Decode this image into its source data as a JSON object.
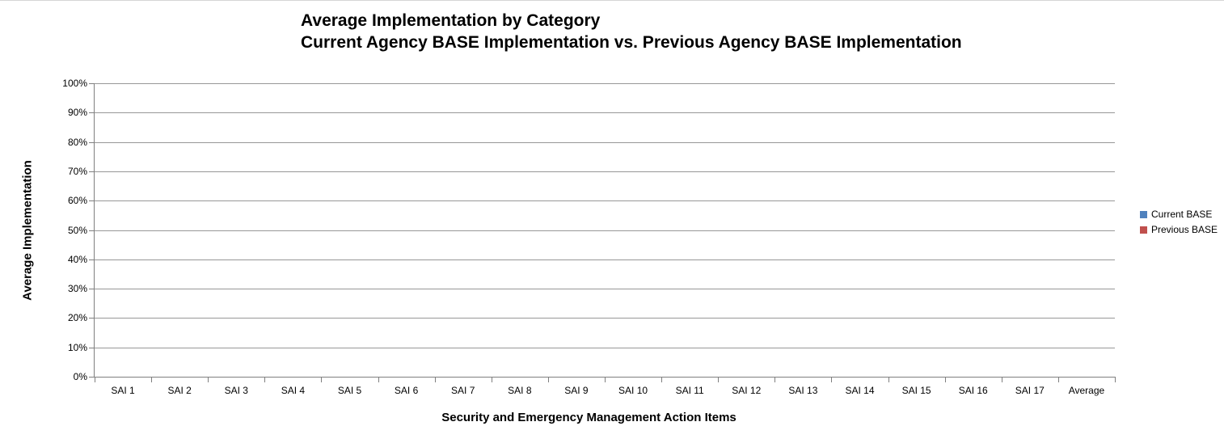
{
  "chart_data": {
    "type": "bar",
    "title_line1": "Average Implementation by Category",
    "title_line2": "Current Agency BASE Implementation vs. Previous Agency BASE Implementation",
    "xlabel": "Security and Emergency Management Action Items",
    "ylabel": "Average Implementation",
    "categories": [
      "SAI 1",
      "SAI 2",
      "SAI 3",
      "SAI 4",
      "SAI 5",
      "SAI 6",
      "SAI 7",
      "SAI 8",
      "SAI 9",
      "SAI 10",
      "SAI 11",
      "SAI 12",
      "SAI 13",
      "SAI 14",
      "SAI 15",
      "SAI 16",
      "SAI 17",
      "Average"
    ],
    "series": [
      {
        "name": "Current BASE",
        "color": "#4F81BD",
        "values": [
          0,
          0,
          0,
          0,
          0,
          0,
          0,
          0,
          0,
          0,
          0,
          0,
          0,
          0,
          0,
          0,
          0,
          0
        ]
      },
      {
        "name": "Previous BASE",
        "color": "#C0504D",
        "values": [
          0,
          0,
          0,
          0,
          0,
          0,
          0,
          0,
          0,
          0,
          0,
          0,
          0,
          0,
          0,
          0,
          0,
          0
        ]
      }
    ],
    "ylim": [
      0,
      100
    ],
    "ytick_step": 10,
    "ytick_labels": [
      "0%",
      "10%",
      "20%",
      "30%",
      "40%",
      "50%",
      "60%",
      "70%",
      "80%",
      "90%",
      "100%"
    ],
    "grid": true,
    "legend_position": "right",
    "colors": {
      "gridline": "#979797",
      "axis": "#7f7f7f",
      "text": "#000000"
    }
  }
}
